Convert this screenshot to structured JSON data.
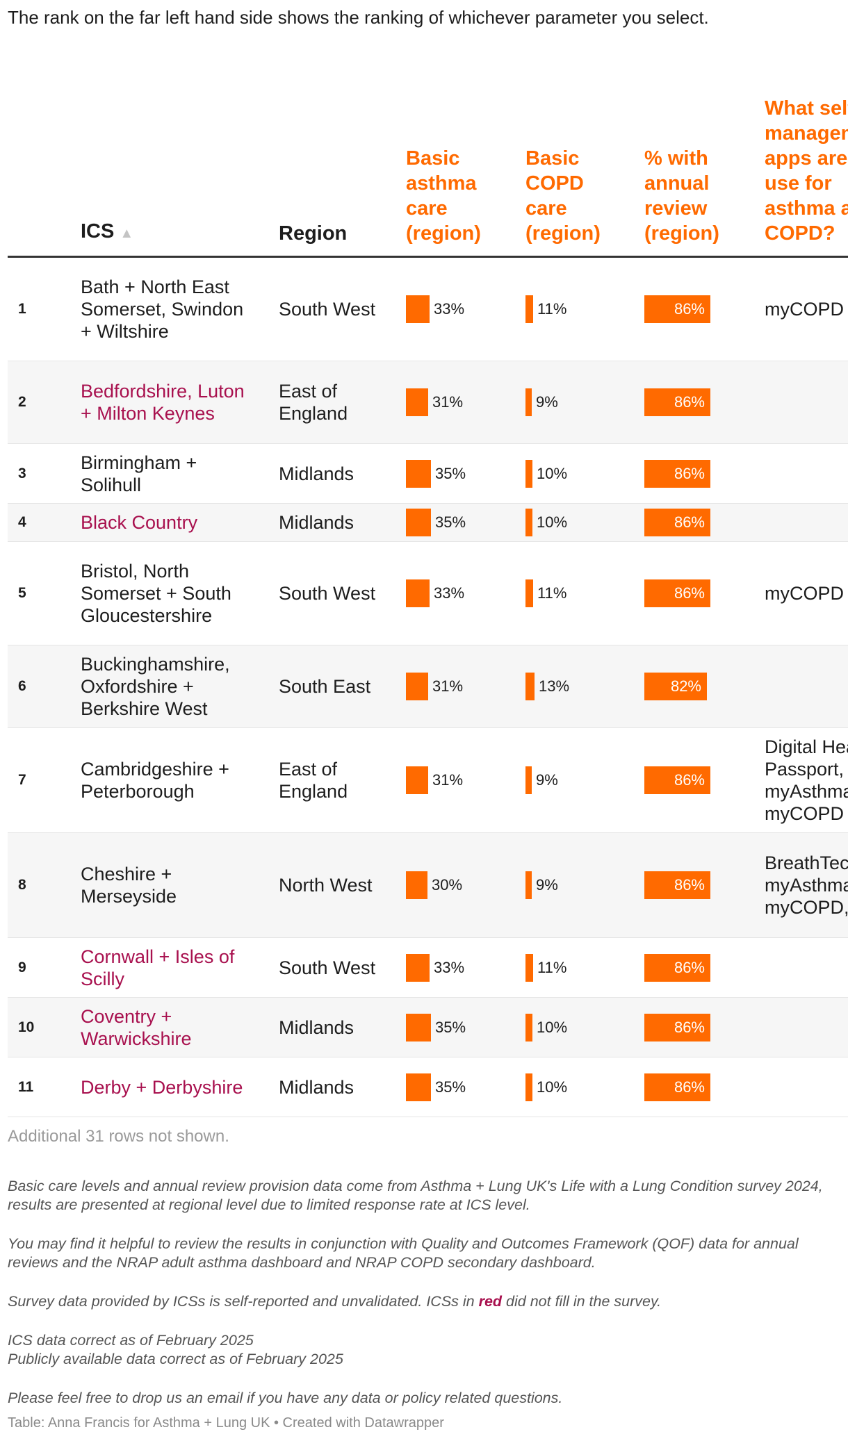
{
  "intro": "The rank on the far left hand side shows the ranking of whichever parameter you select.",
  "colors": {
    "accent": "#ff6a00",
    "not_filled": "#a8104e"
  },
  "headers": {
    "ics": "ICS",
    "sort_icon": "sort-ascending-icon",
    "sort_glyph": "▲",
    "region": "Region",
    "asthma": "Basic asthma care (region)",
    "copd": "Basic COPD care (region)",
    "review": "% with annual review (region)",
    "apps": "What self management apps are in use for asthma and COPD?"
  },
  "rows": [
    {
      "rank": "1",
      "ics": "Bath + North East Somerset, Swindon + Wiltshire",
      "red": false,
      "region": "South West",
      "asthma": 33,
      "asthma_label": "33%",
      "copd": 11,
      "copd_label": "11%",
      "review": 86,
      "review_label": "86%",
      "apps": "myCOPD"
    },
    {
      "rank": "2",
      "ics": "Bedfordshire, Luton + Milton Keynes",
      "red": true,
      "region": "East of England",
      "asthma": 31,
      "asthma_label": "31%",
      "copd": 9,
      "copd_label": "9%",
      "review": 86,
      "review_label": "86%",
      "apps": ""
    },
    {
      "rank": "3",
      "ics": "Birmingham + Solihull",
      "red": false,
      "region": "Midlands",
      "asthma": 35,
      "asthma_label": "35%",
      "copd": 10,
      "copd_label": "10%",
      "review": 86,
      "review_label": "86%",
      "apps": ""
    },
    {
      "rank": "4",
      "ics": "Black Country",
      "red": true,
      "region": "Midlands",
      "asthma": 35,
      "asthma_label": "35%",
      "copd": 10,
      "copd_label": "10%",
      "review": 86,
      "review_label": "86%",
      "apps": ""
    },
    {
      "rank": "5",
      "ics": "Bristol, North Somerset + South Gloucestershire",
      "red": false,
      "region": "South West",
      "asthma": 33,
      "asthma_label": "33%",
      "copd": 11,
      "copd_label": "11%",
      "review": 86,
      "review_label": "86%",
      "apps": "myCOPD"
    },
    {
      "rank": "6",
      "ics": "Buckinghamshire, Oxfordshire + Berkshire West",
      "red": false,
      "region": "South East",
      "asthma": 31,
      "asthma_label": "31%",
      "copd": 13,
      "copd_label": "13%",
      "review": 82,
      "review_label": "82%",
      "apps": ""
    },
    {
      "rank": "7",
      "ics": "Cambridgeshire + Peterborough",
      "red": false,
      "region": "East of England",
      "asthma": 31,
      "asthma_label": "31%",
      "copd": 9,
      "copd_label": "9%",
      "review": 86,
      "review_label": "86%",
      "apps": "Digital Health Passport, myAsthma, myCOPD"
    },
    {
      "rank": "8",
      "ics": "Cheshire + Merseyside",
      "red": false,
      "region": "North West",
      "asthma": 30,
      "asthma_label": "30%",
      "copd": 9,
      "copd_label": "9%",
      "review": 86,
      "review_label": "86%",
      "apps": "BreathTec, myAsthma, myCOPD, other"
    },
    {
      "rank": "9",
      "ics": "Cornwall + Isles of Scilly",
      "red": true,
      "region": "South West",
      "asthma": 33,
      "asthma_label": "33%",
      "copd": 11,
      "copd_label": "11%",
      "review": 86,
      "review_label": "86%",
      "apps": ""
    },
    {
      "rank": "10",
      "ics": "Coventry + Warwickshire",
      "red": true,
      "region": "Midlands",
      "asthma": 35,
      "asthma_label": "35%",
      "copd": 10,
      "copd_label": "10%",
      "review": 86,
      "review_label": "86%",
      "apps": ""
    },
    {
      "rank": "11",
      "ics": "Derby + Derbyshire",
      "red": true,
      "region": "Midlands",
      "asthma": 35,
      "asthma_label": "35%",
      "copd": 10,
      "copd_label": "10%",
      "review": 86,
      "review_label": "86%",
      "apps": ""
    }
  ],
  "rows_not_shown": "Additional 31 rows not shown.",
  "notes": {
    "p1": "Basic care levels and annual review provision data come from Asthma + Lung UK's Life with a Lung Condition survey 2024, results are presented at regional level due to limited response rate at ICS level.",
    "p2": "You may find it helpful to review the results in conjunction with Quality and Outcomes Framework (QOF) data for annual reviews and the NRAP adult asthma dashboard and NRAP COPD secondary dashboard.",
    "p3_before": "Survey data provided by ICSs is self-reported and unvalidated. ICSs in ",
    "p3_red": "red",
    "p3_after": " did not fill in the survey.",
    "p4_line1": "ICS data correct as of February 2025",
    "p4_line2": "Publicly available data correct as of February 2025",
    "p5": "Please feel free to drop us an email if you have any data or policy related questions."
  },
  "footer": "Table: Anna Francis for Asthma + Lung UK  • Created with Datawrapper"
}
